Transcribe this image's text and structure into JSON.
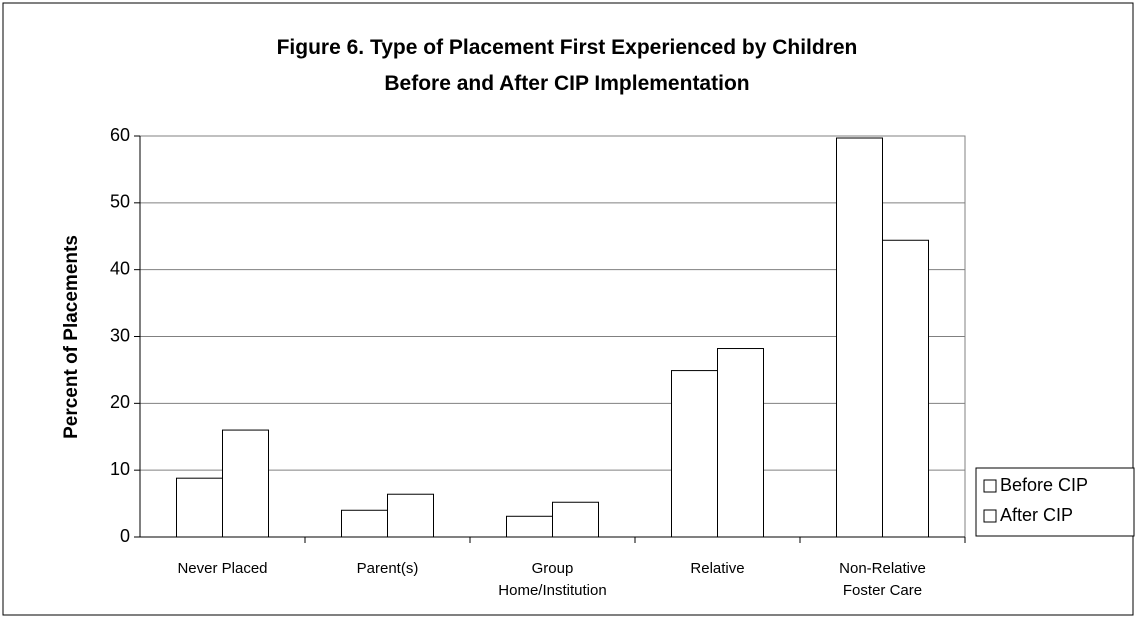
{
  "chart_data": {
    "type": "bar",
    "title": "Figure 6.  Type of Placement First Experienced by Children\nBefore and After CIP Implementation",
    "y_label": "Percent of Placements",
    "categories": [
      "Never Placed",
      "Parent(s)",
      "Group\nHome/Institution",
      "Relative",
      "Non-Relative\nFoster Care"
    ],
    "series": [
      {
        "name": "Before CIP",
        "color": "#ffffff",
        "values": [
          8.8,
          4.0,
          3.1,
          24.9,
          59.7
        ]
      },
      {
        "name": "After CIP",
        "color": "#ffffff",
        "values": [
          16.0,
          6.4,
          5.2,
          28.2,
          44.4
        ]
      }
    ],
    "ylim": [
      0,
      60
    ],
    "yticks": [
      0,
      10,
      20,
      30,
      40,
      50,
      60
    ],
    "grid": true,
    "legend": "right"
  }
}
